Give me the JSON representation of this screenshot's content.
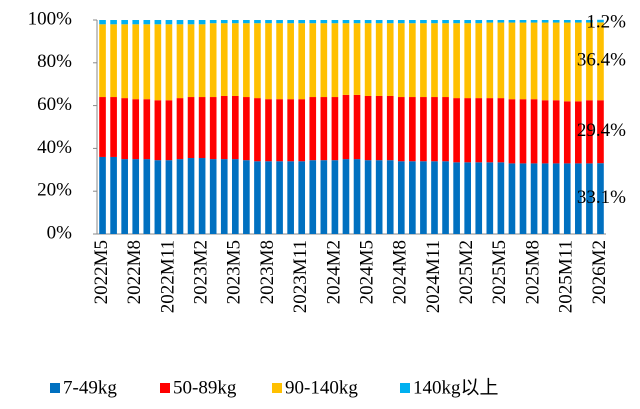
{
  "chart_data": {
    "type": "stacked_bar",
    "categories": [
      "2022M5",
      null,
      null,
      "2022M8",
      null,
      null,
      "2022M11",
      null,
      null,
      "2023M2",
      null,
      null,
      "2023M5",
      null,
      null,
      "2023M8",
      null,
      null,
      "2023M11",
      null,
      null,
      "2024M2",
      null,
      null,
      "2024M5",
      null,
      null,
      "2024M8",
      null,
      null,
      "2024M11",
      null,
      null,
      "2025M2",
      null,
      null,
      "2025M5",
      null,
      null,
      "2025M8",
      null,
      null,
      "2025M11",
      null,
      null,
      "2026M2"
    ],
    "ylim": [
      0,
      100
    ],
    "yticks": [
      {
        "value": 0,
        "label": "0%"
      },
      {
        "value": 20,
        "label": "20%"
      },
      {
        "value": 40,
        "label": "40%"
      },
      {
        "value": 60,
        "label": "60%"
      },
      {
        "value": 80,
        "label": "80%"
      },
      {
        "value": 100,
        "label": "100%"
      }
    ],
    "legend": "bottom",
    "series": [
      {
        "name": "7-49kg",
        "color": "#0070c0",
        "values": [
          36,
          36,
          35,
          35,
          35,
          34.5,
          34.5,
          35,
          35.5,
          35.5,
          35,
          35,
          35,
          34.5,
          34,
          34,
          34,
          34,
          34,
          34.5,
          34.5,
          34.5,
          35,
          35,
          34.5,
          34.5,
          34.5,
          34,
          34,
          34,
          34,
          34,
          33.5,
          33.5,
          33.5,
          33.5,
          33.5,
          33,
          33,
          33,
          33,
          33,
          33,
          33,
          33,
          33.1
        ],
        "value_labels": [
          null,
          null,
          null,
          null,
          null,
          null,
          null,
          null,
          null,
          null,
          null,
          null,
          null,
          null,
          null,
          null,
          null,
          null,
          null,
          null,
          null,
          null,
          null,
          null,
          null,
          null,
          null,
          null,
          null,
          null,
          null,
          null,
          null,
          null,
          null,
          null,
          null,
          null,
          null,
          null,
          null,
          null,
          null,
          null,
          null,
          "33.1%"
        ]
      },
      {
        "name": "50-89kg",
        "color": "#ff0000",
        "values": [
          28,
          28,
          28.5,
          28,
          28,
          28,
          28,
          28.5,
          28.5,
          28.5,
          29,
          29.5,
          29.5,
          29.5,
          29.5,
          29,
          29,
          29,
          29,
          29.5,
          29.5,
          29.5,
          30,
          30,
          30,
          30,
          30,
          30,
          30,
          30,
          30,
          30,
          30,
          30,
          30,
          30,
          30,
          30,
          30,
          30,
          29.5,
          29.5,
          29,
          29,
          29.5,
          29.4
        ],
        "value_labels": [
          null,
          null,
          null,
          null,
          null,
          null,
          null,
          null,
          null,
          null,
          null,
          null,
          null,
          null,
          null,
          null,
          null,
          null,
          null,
          null,
          null,
          null,
          null,
          null,
          null,
          null,
          null,
          null,
          null,
          null,
          null,
          null,
          null,
          null,
          null,
          null,
          null,
          null,
          null,
          null,
          null,
          null,
          null,
          null,
          null,
          "29.4%"
        ]
      },
      {
        "name": "90-140kg",
        "color": "#ffc000",
        "values": [
          34,
          34,
          34.5,
          35,
          35,
          35.5,
          35.5,
          34.5,
          34,
          34,
          34.5,
          34,
          34,
          34.5,
          35,
          35.5,
          35.5,
          35.5,
          35.5,
          34.5,
          34.5,
          34.5,
          33.5,
          33.5,
          34,
          34,
          34,
          34.5,
          34.5,
          34.5,
          34.5,
          34.5,
          35,
          35,
          35,
          35.3,
          35.3,
          35.8,
          35.8,
          35.8,
          36.3,
          36.3,
          36.8,
          36.8,
          36.3,
          36.4
        ],
        "value_labels": [
          null,
          null,
          null,
          null,
          null,
          null,
          null,
          null,
          null,
          null,
          null,
          null,
          null,
          null,
          null,
          null,
          null,
          null,
          null,
          null,
          null,
          null,
          null,
          null,
          null,
          null,
          null,
          null,
          null,
          null,
          null,
          null,
          null,
          null,
          null,
          null,
          null,
          null,
          null,
          null,
          null,
          null,
          null,
          null,
          null,
          "36.4%"
        ]
      },
      {
        "name": "140kg以上",
        "color": "#00b0f0",
        "values": [
          2,
          2,
          2,
          2,
          2,
          2,
          2,
          2,
          2,
          2,
          1.5,
          1.5,
          1.5,
          1.5,
          1.5,
          1.5,
          1.5,
          1.5,
          1.5,
          1.5,
          1.5,
          1.5,
          1.5,
          1.5,
          1.5,
          1.5,
          1.5,
          1.5,
          1.5,
          1.5,
          1.5,
          1.5,
          1.5,
          1.5,
          1.5,
          1.2,
          1.2,
          1.2,
          1.2,
          1.2,
          1.2,
          1.2,
          1.2,
          1.2,
          1.2,
          1.2
        ],
        "value_labels": [
          null,
          null,
          null,
          null,
          null,
          null,
          null,
          null,
          null,
          null,
          null,
          null,
          null,
          null,
          null,
          null,
          null,
          null,
          null,
          null,
          null,
          null,
          null,
          null,
          null,
          null,
          null,
          null,
          null,
          null,
          null,
          null,
          null,
          null,
          null,
          null,
          null,
          null,
          null,
          null,
          null,
          null,
          null,
          null,
          null,
          "1.2%"
        ]
      }
    ]
  }
}
